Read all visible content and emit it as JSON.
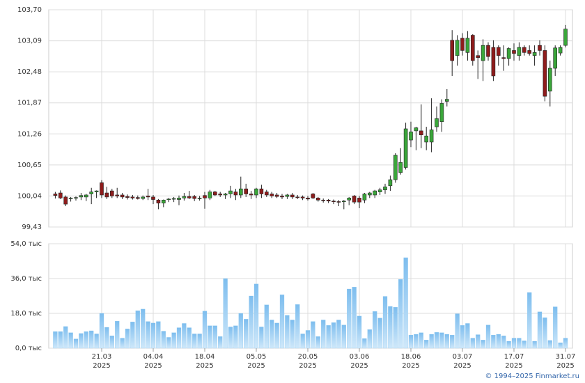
{
  "chart_data": {
    "type": "candlestick",
    "ylim": [
      99.43,
      103.7
    ],
    "yticks": [
      {
        "value": 103.7,
        "label": "103,70"
      },
      {
        "value": 103.09,
        "label": "103,09"
      },
      {
        "value": 102.48,
        "label": "102,48"
      },
      {
        "value": 101.87,
        "label": "101,87"
      },
      {
        "value": 101.26,
        "label": "101,26"
      },
      {
        "value": 100.65,
        "label": "100,65"
      },
      {
        "value": 100.04,
        "label": "100,04"
      },
      {
        "value": 99.43,
        "label": "99,43"
      }
    ],
    "up_color": "#3aa63a",
    "down_color": "#8e1c1c",
    "grid": true,
    "categories": [
      null,
      null,
      null,
      null,
      null,
      null,
      null,
      null,
      null,
      "21.03\n2025",
      null,
      null,
      null,
      null,
      null,
      null,
      null,
      null,
      null,
      "04.04\n2025",
      null,
      null,
      null,
      null,
      null,
      null,
      null,
      null,
      null,
      "18.04\n2025",
      null,
      null,
      null,
      null,
      null,
      null,
      null,
      null,
      null,
      "05.05\n2025",
      null,
      null,
      null,
      null,
      null,
      null,
      null,
      null,
      null,
      "20.05\n2025",
      null,
      null,
      null,
      null,
      null,
      null,
      null,
      null,
      null,
      "03.06\n2025",
      null,
      null,
      null,
      null,
      null,
      null,
      null,
      null,
      null,
      "18.06\n2025",
      null,
      null,
      null,
      null,
      null,
      null,
      null,
      null,
      null,
      "03.07\n2025",
      null,
      null,
      null,
      null,
      null,
      null,
      null,
      null,
      null,
      "17.07\n2025",
      null,
      null,
      null,
      null,
      null,
      null,
      null,
      null,
      null,
      "31.07\n2025"
    ],
    "open": [
      100.08,
      100.1,
      100.02,
      99.99,
      100.0,
      100.02,
      100.02,
      100.08,
      100.12,
      100.3,
      100.1,
      100.14,
      100.06,
      100.06,
      100.03,
      100.02,
      100.01,
      99.99,
      100.04,
      100.02,
      99.96,
      99.9,
      99.97,
      99.98,
      99.97,
      100.0,
      100.03,
      100.03,
      99.99,
      100.05,
      100.0,
      100.12,
      100.08,
      100.06,
      100.08,
      100.12,
      100.06,
      100.18,
      100.08,
      100.06,
      100.18,
      100.12,
      100.08,
      100.06,
      100.04,
      100.03,
      100.06,
      100.02,
      100.02,
      100.0,
      100.08,
      100.0,
      99.96,
      99.96,
      99.94,
      99.93,
      99.93,
      99.96,
      100.04,
      100.0,
      99.96,
      100.06,
      100.06,
      100.12,
      100.16,
      100.24,
      100.36,
      100.5,
      100.6,
      101.14,
      101.32,
      101.32,
      101.1,
      101.1,
      101.4,
      101.5,
      101.9,
      103.1,
      102.8,
      103.14,
      102.86,
      103.2,
      102.8,
      102.7,
      103.0,
      102.96,
      102.96,
      102.76,
      102.74,
      102.9,
      102.8,
      102.96,
      102.9,
      102.8,
      103.0,
      102.9,
      102.1,
      102.55,
      102.85,
      103.0
    ],
    "high": [
      100.12,
      100.15,
      100.05,
      100.02,
      100.03,
      100.1,
      100.08,
      100.2,
      100.15,
      100.35,
      100.22,
      100.18,
      100.2,
      100.1,
      100.07,
      100.06,
      100.05,
      100.05,
      100.18,
      100.06,
      99.98,
      99.97,
      100.0,
      100.02,
      100.05,
      100.1,
      100.14,
      100.06,
      100.04,
      100.12,
      100.16,
      100.14,
      100.12,
      100.1,
      100.24,
      100.18,
      100.42,
      100.28,
      100.14,
      100.2,
      100.26,
      100.16,
      100.12,
      100.1,
      100.08,
      100.08,
      100.1,
      100.06,
      100.05,
      100.04,
      100.1,
      100.02,
      99.99,
      99.98,
      99.97,
      99.96,
      99.96,
      100.02,
      100.06,
      100.04,
      100.1,
      100.12,
      100.16,
      100.2,
      100.28,
      100.44,
      100.88,
      100.98,
      101.48,
      101.5,
      101.4,
      101.84,
      101.4,
      101.96,
      101.8,
      101.94,
      102.14,
      103.3,
      103.2,
      103.24,
      103.28,
      103.22,
      102.9,
      103.12,
      103.06,
      103.1,
      103.0,
      103.0,
      102.96,
      103.04,
      103.06,
      103.0,
      103.0,
      103.0,
      103.1,
      103.0,
      102.7,
      103.0,
      103.0,
      103.4
    ],
    "low": [
      99.99,
      99.98,
      99.84,
      99.93,
      99.95,
      99.96,
      99.94,
      99.88,
      100.0,
      100.0,
      99.98,
      100.0,
      100.0,
      99.98,
      99.97,
      99.97,
      99.97,
      99.96,
      99.96,
      99.88,
      99.78,
      99.82,
      99.92,
      99.92,
      99.86,
      99.95,
      99.98,
      99.94,
      99.95,
      99.79,
      99.96,
      100.04,
      100.02,
      99.98,
      100.0,
      99.96,
      100.0,
      100.02,
      99.98,
      100.0,
      100.0,
      100.02,
      100.0,
      100.0,
      99.98,
      99.98,
      99.98,
      99.98,
      99.96,
      99.95,
      99.98,
      99.93,
      99.91,
      99.9,
      99.88,
      99.84,
      99.78,
      99.86,
      99.88,
      99.8,
      99.9,
      100.0,
      100.0,
      100.06,
      100.08,
      100.14,
      100.3,
      100.46,
      100.56,
      101.0,
      100.94,
      100.98,
      100.94,
      100.9,
      101.3,
      101.3,
      101.8,
      102.4,
      102.6,
      102.8,
      102.7,
      102.6,
      102.34,
      102.3,
      102.7,
      102.3,
      102.6,
      102.5,
      102.6,
      102.7,
      102.7,
      102.8,
      102.8,
      102.6,
      102.8,
      101.9,
      101.8,
      102.4,
      102.8,
      102.96
    ],
    "close": [
      100.05,
      100.0,
      99.88,
      100.0,
      100.01,
      100.05,
      100.06,
      100.12,
      100.14,
      100.06,
      100.02,
      100.04,
      100.04,
      100.02,
      100.01,
      100.0,
      99.99,
      100.02,
      100.02,
      99.97,
      99.9,
      99.96,
      99.98,
      99.99,
      100.0,
      100.03,
      100.0,
      99.99,
      100.0,
      100.0,
      100.12,
      100.06,
      100.06,
      100.08,
      100.14,
      100.06,
      100.18,
      100.08,
      100.06,
      100.18,
      100.08,
      100.06,
      100.04,
      100.03,
      100.02,
      100.06,
      100.02,
      100.01,
      100.0,
      99.98,
      100.0,
      99.96,
      99.95,
      99.94,
      99.93,
      99.92,
      99.94,
      100.0,
      99.92,
      99.92,
      100.08,
      100.1,
      100.14,
      100.16,
      100.22,
      100.36,
      100.84,
      100.7,
      101.36,
      101.3,
      101.38,
      101.24,
      101.22,
      101.34,
      101.56,
      101.86,
      101.94,
      102.7,
      103.1,
      102.9,
      103.14,
      102.7,
      102.76,
      103.0,
      102.78,
      102.4,
      102.8,
      102.74,
      102.94,
      102.84,
      102.96,
      102.86,
      102.84,
      102.86,
      102.9,
      102.0,
      102.55,
      102.95,
      102.96,
      103.32
    ],
    "volume": {
      "color": "#8cc8f0",
      "ylim": [
        0,
        54
      ],
      "yticks": [
        {
          "value": 0,
          "label": "0,0 тыс"
        },
        {
          "value": 18,
          "label": "18,0 тыс"
        },
        {
          "value": 36,
          "label": "36,0 тыс"
        },
        {
          "value": 54,
          "label": "54,0 тыс"
        }
      ],
      "values": [
        8.6,
        8.6,
        11.2,
        8.0,
        4.8,
        7.6,
        8.6,
        9.0,
        7.4,
        18.0,
        10.8,
        6.4,
        14.0,
        5.2,
        10.0,
        13.6,
        19.4,
        20.2,
        13.8,
        13.0,
        13.8,
        8.8,
        5.6,
        8.0,
        10.6,
        12.8,
        10.6,
        7.4,
        7.4,
        19.2,
        11.6,
        11.6,
        6.0,
        36.0,
        11.0,
        11.6,
        18.0,
        15.0,
        27.0,
        33.2,
        11.0,
        22.4,
        14.6,
        13.0,
        27.6,
        17.0,
        14.6,
        22.6,
        7.4,
        9.2,
        13.8,
        6.0,
        14.6,
        11.8,
        13.2,
        14.6,
        12.0,
        30.6,
        31.6,
        16.6,
        5.0,
        9.6,
        19.0,
        15.6,
        26.8,
        21.6,
        21.2,
        35.6,
        46.8,
        6.8,
        7.2,
        8.0,
        4.2,
        7.2,
        8.2,
        8.0,
        7.2,
        6.8,
        17.8,
        11.8,
        12.8,
        5.2,
        7.0,
        4.2,
        12.0,
        6.8,
        7.2,
        6.4,
        3.6,
        5.2,
        5.2,
        3.8,
        28.8,
        3.6,
        18.8,
        15.8,
        4.0,
        21.4,
        2.8,
        5.2
      ]
    },
    "source": "© 1994–2025 Finmarket.ru"
  }
}
